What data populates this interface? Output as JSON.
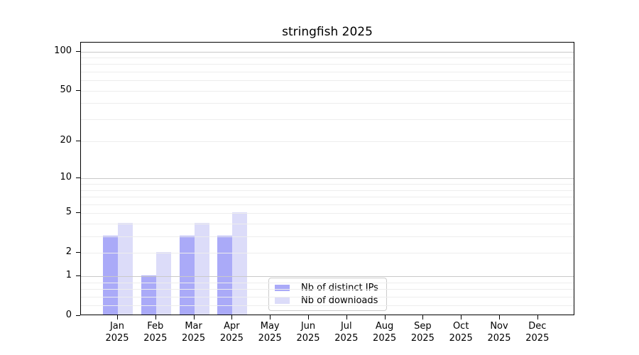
{
  "title": "stringfish 2025",
  "legend": {
    "items": [
      {
        "label": "Nb of distinct IPs",
        "color": "#aaaaf8"
      },
      {
        "label": "Nb of downloads",
        "color": "#dcdcf9"
      }
    ]
  },
  "chart_data": {
    "type": "bar",
    "title": "stringfish 2025",
    "categories": [
      "Jan",
      "Feb",
      "Mar",
      "Apr",
      "May",
      "Jun",
      "Jul",
      "Aug",
      "Sep",
      "Oct",
      "Nov",
      "Dec"
    ],
    "x_year_label": "2025",
    "series": [
      {
        "name": "Nb of distinct IPs",
        "color": "#aaaaf8",
        "values": [
          3,
          1,
          3,
          3,
          0,
          0,
          0,
          0,
          0,
          0,
          0,
          0
        ]
      },
      {
        "name": "Nb of downloads",
        "color": "#dcdcf9",
        "values": [
          4,
          2,
          4,
          5,
          0,
          0,
          0,
          0,
          0,
          0,
          0,
          0
        ]
      }
    ],
    "yscale": "log1p",
    "ylim": [
      0,
      117
    ],
    "y_tick_values": [
      0,
      1,
      2,
      5,
      10,
      20,
      50,
      100
    ],
    "y_tick_labels": [
      "0",
      "1",
      "2",
      "5",
      "10",
      "20",
      "50",
      "100"
    ],
    "grid_major_values": [
      1,
      10,
      100
    ],
    "grid_minor_values": [
      0.2,
      0.4,
      0.6,
      0.8,
      2,
      3,
      4,
      5,
      6,
      7,
      8,
      9,
      20,
      30,
      40,
      50,
      60,
      70,
      80,
      90
    ],
    "grid_on": true,
    "legend_position": "lower-center",
    "colors": {
      "major_grid": "#c9c9c9",
      "minor_grid": "#ededed",
      "axis": "#000000",
      "background": "#ffffff"
    }
  }
}
